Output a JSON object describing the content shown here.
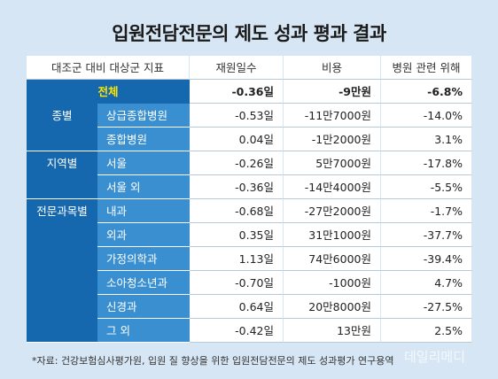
{
  "title": "입원전담전문의 제도 성과 평과 결과",
  "headers": [
    "대조군 대비 대상군 지표",
    "재원일수",
    "비용",
    "병원 관련 위해"
  ],
  "total": {
    "label": "전체",
    "days": "-0.36일",
    "cost": "-9만원",
    "risk": "-6.8%"
  },
  "groups": [
    {
      "category": "종별",
      "rows": [
        {
          "label": "상급종합병원",
          "days": "-0.53일",
          "cost": "-11만7000원",
          "risk": "-14.0%"
        },
        {
          "label": "종합병원",
          "days": "0.04일",
          "cost": "-1만2000원",
          "risk": "3.1%"
        }
      ]
    },
    {
      "category": "지역별",
      "rows": [
        {
          "label": "서울",
          "days": "-0.26일",
          "cost": "5만7000원",
          "risk": "-17.8%"
        },
        {
          "label": "서울 외",
          "days": "-0.36일",
          "cost": "-14만4000원",
          "risk": "-5.5%"
        }
      ]
    },
    {
      "category": "전문과목별",
      "rows": [
        {
          "label": "내과",
          "days": "-0.68일",
          "cost": "-27만2000원",
          "risk": "-1.7%"
        },
        {
          "label": "외과",
          "days": "0.35일",
          "cost": "31만1000원",
          "risk": "-37.7%"
        },
        {
          "label": "가정의학과",
          "days": "1.13일",
          "cost": "74만6000원",
          "risk": "-39.4%"
        },
        {
          "label": "소아청소년과",
          "days": "-0.70일",
          "cost": "-1000원",
          "risk": "4.7%"
        },
        {
          "label": "신경과",
          "days": "0.64일",
          "cost": "20만8000원",
          "risk": "-27.5%"
        },
        {
          "label": "그 외",
          "days": "-0.42일",
          "cost": "13만원",
          "risk": "2.5%"
        }
      ]
    }
  ],
  "footnote": "*자료: 건강보험심사평가원, 입원 질 향상을 위한 입원전담전문의 제도 성과평가 연구용역",
  "watermark": "데일리메디"
}
